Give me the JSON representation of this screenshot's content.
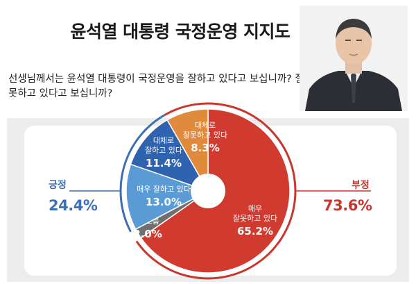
{
  "title": "윤석열 대통령 국정운영 지지도",
  "question": "선생님께서는 윤석열 대통령이 국정운영을 잘하고 있다고 보십니까? 잘못하고 있다고 보십니까?",
  "positive": {
    "label": "긍정",
    "value": "24.4%",
    "color": "#3d6fb6"
  },
  "negative": {
    "label": "부정",
    "value": "73.6%",
    "color": "#c8372d"
  },
  "chart_data": {
    "type": "pie",
    "slices": [
      {
        "label_lines": [
          "매우",
          "잘못하고 있다"
        ],
        "value": 65.2,
        "value_label": "65.2%",
        "color": "#d03a2f"
      },
      {
        "label_lines": [
          "잘 모름"
        ],
        "value": 2.0,
        "value_label": "2.0%",
        "color": "#6f6f6f"
      },
      {
        "label_lines": [
          "매우 잘하고 있다"
        ],
        "value": 13.0,
        "value_label": "13.0%",
        "color": "#5a9bd6"
      },
      {
        "label_lines": [
          "대체로",
          "잘하고 있다"
        ],
        "value": 11.4,
        "value_label": "11.4%",
        "color": "#2f63b0"
      },
      {
        "label_lines": [
          "대체로",
          "잘못하고 있다"
        ],
        "value": 8.3,
        "value_label": "8.3%",
        "color": "#e08a3e"
      }
    ]
  }
}
